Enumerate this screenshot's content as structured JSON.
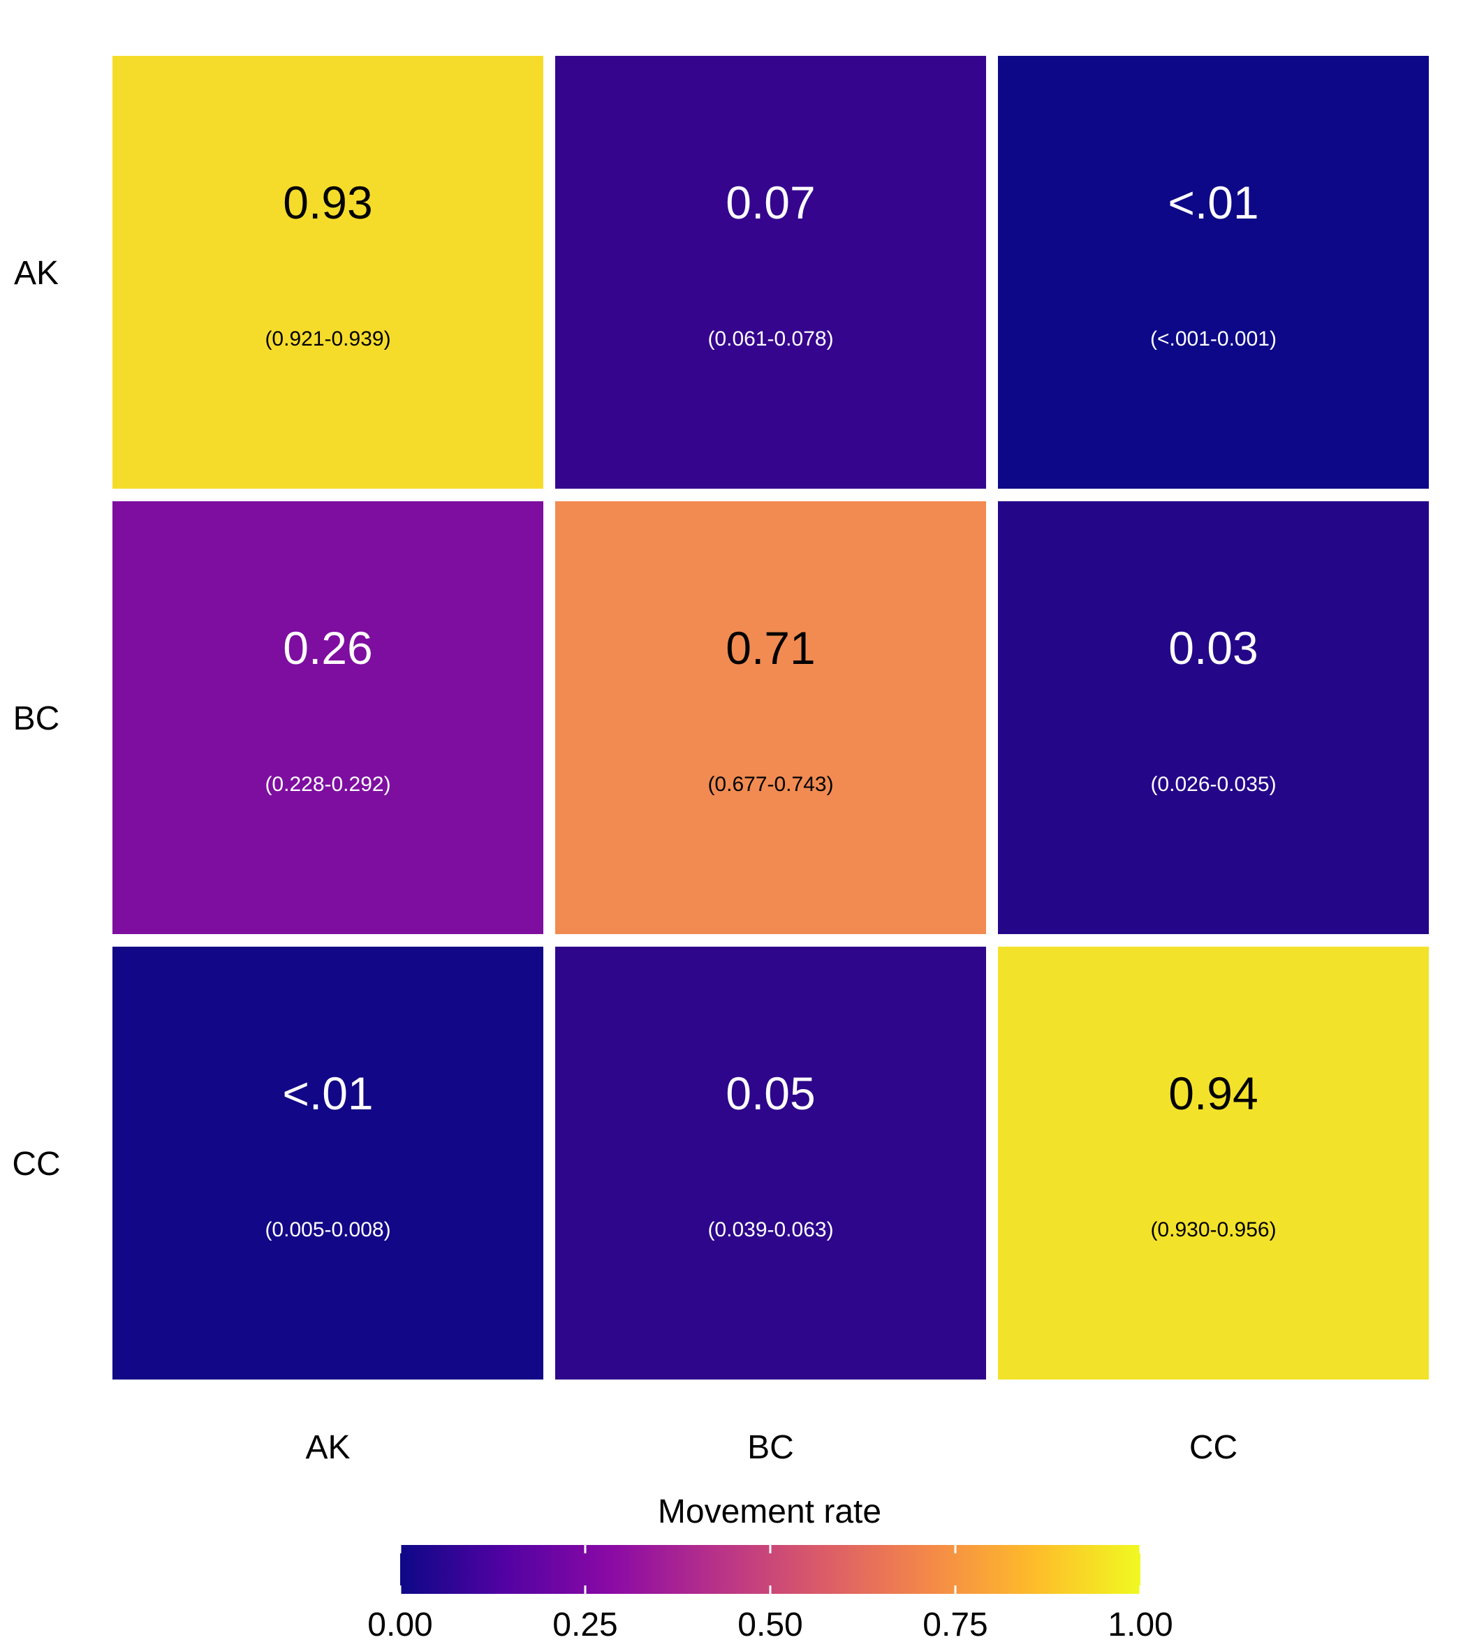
{
  "chart_data": {
    "type": "heatmap",
    "rows": [
      "AK",
      "BC",
      "CC"
    ],
    "columns": [
      "AK",
      "BC",
      "CC"
    ],
    "cells": [
      [
        {
          "value": 0.93,
          "label": "0.93",
          "ci": "(0.921-0.939)",
          "color": "#F5DC2B",
          "text_color": "#000000"
        },
        {
          "value": 0.07,
          "label": "0.07",
          "ci": "(0.061-0.078)",
          "color": "#35058E",
          "text_color": "#ffffff"
        },
        {
          "value": 0.0005,
          "label": "<.01",
          "ci": "(<.001-0.001)",
          "color": "#0D0887",
          "text_color": "#ffffff"
        }
      ],
      [
        {
          "value": 0.26,
          "label": "0.26",
          "ci": "(0.228-0.292)",
          "color": "#7E0EA0",
          "text_color": "#ffffff"
        },
        {
          "value": 0.71,
          "label": "0.71",
          "ci": "(0.677-0.743)",
          "color": "#F18B51",
          "text_color": "#000000"
        },
        {
          "value": 0.03,
          "label": "0.03",
          "ci": "(0.026-0.035)",
          "color": "#240789",
          "text_color": "#ffffff"
        }
      ],
      [
        {
          "value": 0.006,
          "label": "<.01",
          "ci": "(0.005-0.008)",
          "color": "#120787",
          "text_color": "#ffffff"
        },
        {
          "value": 0.05,
          "label": "0.05",
          "ci": "(0.039-0.063)",
          "color": "#2D068B",
          "text_color": "#ffffff"
        },
        {
          "value": 0.94,
          "label": "0.94",
          "ci": "(0.930-0.956)",
          "color": "#F3E22A",
          "text_color": "#000000"
        }
      ]
    ],
    "legend": {
      "title": "Movement rate",
      "min": 0,
      "max": 1,
      "ticks": [
        "0.00",
        "0.25",
        "0.50",
        "0.75",
        "1.00"
      ],
      "tick_values": [
        0,
        0.25,
        0.5,
        0.75,
        1
      ],
      "placement": "bottom",
      "colormap": [
        "#0D0887",
        "#5302A3",
        "#8B0AA5",
        "#B83289",
        "#DB5C68",
        "#F48849",
        "#FEBC2A",
        "#F0F921"
      ]
    }
  }
}
